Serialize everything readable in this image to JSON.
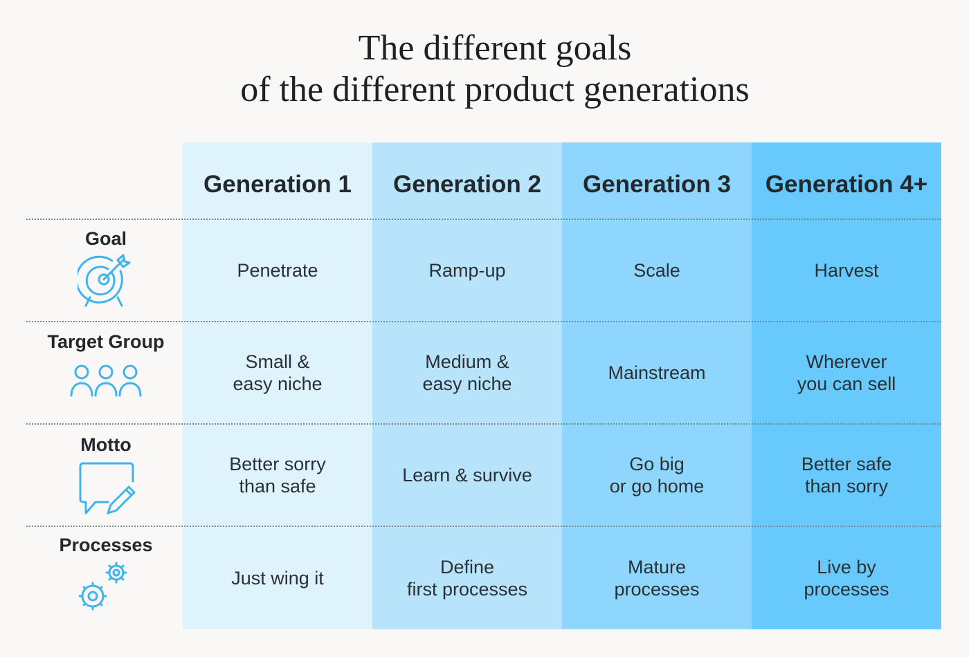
{
  "title": {
    "line1": "The different goals",
    "line2": "of the different product generations"
  },
  "columns": [
    "Generation 1",
    "Generation 2",
    "Generation 3",
    "Generation 4+"
  ],
  "rows": [
    {
      "label": "Goal",
      "icon": "target-icon",
      "cells": [
        [
          "Penetrate"
        ],
        [
          "Ramp-up"
        ],
        [
          "Scale"
        ],
        [
          "Harvest"
        ]
      ]
    },
    {
      "label": "Target Group",
      "icon": "people-group-icon",
      "cells": [
        [
          "Small &",
          "easy niche"
        ],
        [
          "Medium &",
          "easy niche"
        ],
        [
          "Mainstream"
        ],
        [
          "Wherever",
          "you can sell"
        ]
      ]
    },
    {
      "label": "Motto",
      "icon": "note-pencil-icon",
      "cells": [
        [
          "Better sorry",
          "than safe"
        ],
        [
          "Learn & survive"
        ],
        [
          "Go big",
          "or go home"
        ],
        [
          "Better safe",
          "than sorry"
        ]
      ]
    },
    {
      "label": "Processes",
      "icon": "gears-icon",
      "cells": [
        [
          "Just wing it"
        ],
        [
          "Define",
          "first processes"
        ],
        [
          "Mature",
          "processes"
        ],
        [
          "Live by",
          "processes"
        ]
      ]
    }
  ],
  "colors": {
    "generation_1": "#dff3fd",
    "generation_2": "#b7e4fb",
    "generation_3": "#8fd6fd",
    "generation_4": "#67c9fc",
    "icon": "#3fb4ec"
  }
}
